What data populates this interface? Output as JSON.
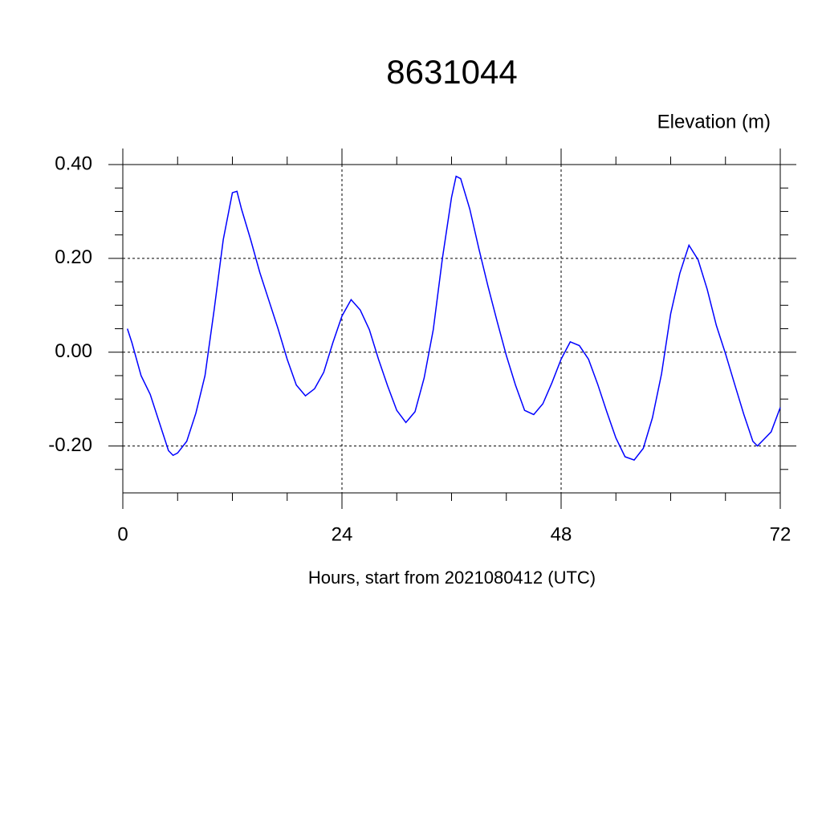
{
  "chart_data": {
    "type": "line",
    "title": "8631044",
    "y_label": "Elevation (m)",
    "x_label": "Hours, start from 2021080412 (UTC)",
    "x": [
      0.5,
      1,
      2,
      3,
      4,
      5,
      5.5,
      6,
      7,
      8,
      9,
      10,
      11,
      12,
      12.5,
      13,
      14,
      15,
      16,
      17,
      18,
      19,
      20,
      21,
      22,
      23,
      24,
      25,
      26,
      27,
      28,
      29,
      30,
      31,
      32,
      33,
      34,
      35,
      36,
      36.5,
      37,
      38,
      39,
      40,
      41,
      42,
      43,
      44,
      45,
      46,
      47,
      48,
      49,
      50,
      51,
      52,
      53,
      54,
      55,
      56,
      57,
      58,
      59,
      60,
      61,
      62,
      63,
      64,
      65,
      66,
      67,
      68,
      69,
      69.5,
      70,
      71,
      72
    ],
    "series": [
      {
        "name": "Elevation",
        "color": "#0000ff",
        "values": [
          0.05,
          0.02,
          -0.05,
          -0.09,
          -0.15,
          -0.21,
          -0.22,
          -0.215,
          -0.19,
          -0.13,
          -0.05,
          0.09,
          0.24,
          0.34,
          0.343,
          0.305,
          0.24,
          0.17,
          0.11,
          0.05,
          -0.015,
          -0.07,
          -0.093,
          -0.078,
          -0.043,
          0.02,
          0.077,
          0.112,
          0.09,
          0.048,
          -0.015,
          -0.072,
          -0.124,
          -0.15,
          -0.127,
          -0.055,
          0.048,
          0.2,
          0.33,
          0.375,
          0.37,
          0.305,
          0.22,
          0.14,
          0.065,
          -0.007,
          -0.07,
          -0.124,
          -0.133,
          -0.11,
          -0.065,
          -0.015,
          0.022,
          0.014,
          -0.015,
          -0.068,
          -0.127,
          -0.183,
          -0.223,
          -0.23,
          -0.205,
          -0.14,
          -0.046,
          0.082,
          0.168,
          0.228,
          0.197,
          0.134,
          0.057,
          -0.003,
          -0.068,
          -0.132,
          -0.19,
          -0.2,
          -0.19,
          -0.17,
          -0.118
        ]
      }
    ],
    "xlim": [
      0,
      72
    ],
    "xticks": [
      0,
      24,
      48,
      72
    ],
    "xminorticks": [
      6,
      12,
      18,
      30,
      36,
      42,
      54,
      60,
      66
    ],
    "ylim": [
      -0.3,
      0.4
    ],
    "yticks": [
      {
        "value": -0.2,
        "label": "-0.20"
      },
      {
        "value": 0,
        "label": "0.00"
      },
      {
        "value": 0.2,
        "label": "0.20"
      },
      {
        "value": 0.4,
        "label": "0.40"
      }
    ],
    "yminorticks": [
      -0.25,
      -0.15,
      -0.1,
      -0.05,
      0.05,
      0.1,
      0.15,
      0.25,
      0.3,
      0.35
    ],
    "grid": true
  }
}
